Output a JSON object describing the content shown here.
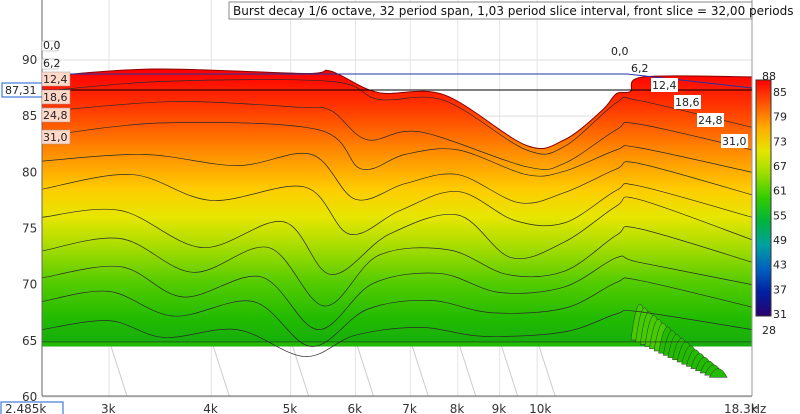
{
  "chart_data": {
    "type": "area",
    "title": "Burst decay 1/6 octave, 32 period span, 1,03 period slice interval,  front slice = 32,00 periods",
    "y_ticks": [
      "90",
      "85",
      "80",
      "75",
      "70",
      "65",
      "60"
    ],
    "y_range": [
      60,
      91
    ],
    "x_ticks": [
      "3k",
      "4k",
      "5k",
      "6k",
      "7k",
      "8k",
      "9k",
      "10k"
    ],
    "x_min_label": "2.485k",
    "x_max_label": "18.3k",
    "x_unit": "Hz",
    "x_range": [
      2485,
      18300
    ],
    "cursor_value": "87,31",
    "slice_labels_left": [
      "0,0",
      "6,2",
      "12,4",
      "18,6",
      "24,8",
      "31,0"
    ],
    "slice_labels_right": [
      "0,0",
      "6,2",
      "12,4",
      "18,6",
      "24,8",
      "31,0"
    ],
    "colorbar_ticks": [
      "88",
      "85",
      "79",
      "73",
      "67",
      "61",
      "55",
      "49",
      "43",
      "37",
      "31",
      "28"
    ],
    "colorbar_colors": [
      "#ff0000",
      "#ff5500",
      "#ffaa00",
      "#e6e600",
      "#99dd00",
      "#33cc00",
      "#00b33c",
      "#00a0a0",
      "#0060c0",
      "#0020a0",
      "#2a0070"
    ],
    "slices": [
      {
        "t": 0.0,
        "points": [
          [
            2485,
            88.5
          ],
          [
            3400,
            89.2
          ],
          [
            5200,
            88.8
          ],
          [
            5600,
            89.0
          ],
          [
            6400,
            87.1
          ],
          [
            7700,
            86.9
          ],
          [
            9700,
            82.4
          ],
          [
            10800,
            82.9
          ],
          [
            12000,
            85.5
          ],
          [
            12500,
            87.0
          ],
          [
            13000,
            87.2
          ],
          [
            13500,
            88.5
          ],
          [
            18300,
            88.5
          ]
        ]
      },
      {
        "t": 2.0,
        "points": [
          [
            2485,
            87.2
          ],
          [
            3500,
            88.1
          ],
          [
            5600,
            88.1
          ],
          [
            6400,
            86.5
          ],
          [
            7700,
            86.4
          ],
          [
            9700,
            82.0
          ],
          [
            10800,
            82.3
          ],
          [
            12500,
            86.2
          ],
          [
            13300,
            86.4
          ],
          [
            18300,
            84.0
          ]
        ]
      },
      {
        "t": 4.1,
        "points": [
          [
            2485,
            85.4
          ],
          [
            3600,
            86.3
          ],
          [
            5100,
            85.8
          ],
          [
            5600,
            85.5
          ],
          [
            6200,
            82.9
          ],
          [
            7200,
            83.6
          ],
          [
            9700,
            80.5
          ],
          [
            10800,
            80.8
          ],
          [
            12500,
            83.8
          ],
          [
            13300,
            84.3
          ],
          [
            18300,
            82.0
          ]
        ]
      },
      {
        "t": 6.2,
        "points": [
          [
            2485,
            83.2
          ],
          [
            3500,
            84.4
          ],
          [
            5400,
            83.8
          ],
          [
            6100,
            80.3
          ],
          [
            6900,
            81.6
          ],
          [
            8000,
            82.0
          ],
          [
            9700,
            79.8
          ],
          [
            10800,
            80.1
          ],
          [
            12500,
            82.0
          ],
          [
            13300,
            82.2
          ],
          [
            18300,
            80.0
          ]
        ]
      },
      {
        "t": 8.3,
        "points": [
          [
            2485,
            81.0
          ],
          [
            3300,
            81.6
          ],
          [
            4300,
            80.6
          ],
          [
            5300,
            81.6
          ],
          [
            6000,
            77.6
          ],
          [
            6900,
            79.0
          ],
          [
            8000,
            79.8
          ],
          [
            9500,
            77.3
          ],
          [
            10800,
            78.2
          ],
          [
            12500,
            80.3
          ],
          [
            13300,
            80.8
          ],
          [
            18300,
            78.0
          ]
        ]
      },
      {
        "t": 10.3,
        "points": [
          [
            2485,
            78.5
          ],
          [
            3200,
            79.8
          ],
          [
            4000,
            77.5
          ],
          [
            5200,
            78.7
          ],
          [
            5900,
            74.5
          ],
          [
            6800,
            76.6
          ],
          [
            8000,
            78.3
          ],
          [
            9400,
            75.7
          ],
          [
            10800,
            75.5
          ],
          [
            12500,
            78.4
          ],
          [
            13300,
            78.8
          ],
          [
            18300,
            76.0
          ]
        ]
      },
      {
        "t": 12.4,
        "points": [
          [
            2485,
            76.0
          ],
          [
            3100,
            76.6
          ],
          [
            3900,
            73.3
          ],
          [
            4900,
            75.6
          ],
          [
            5600,
            70.9
          ],
          [
            6600,
            74.5
          ],
          [
            8000,
            76.2
          ],
          [
            9300,
            72.4
          ],
          [
            10800,
            73.8
          ],
          [
            12500,
            77.0
          ],
          [
            13300,
            77.6
          ],
          [
            18300,
            74.0
          ]
        ]
      },
      {
        "t": 14.5,
        "points": [
          [
            2485,
            73.0
          ],
          [
            3100,
            74.1
          ],
          [
            3800,
            71.1
          ],
          [
            4700,
            73.3
          ],
          [
            5500,
            68.1
          ],
          [
            6400,
            72.6
          ],
          [
            7800,
            73.1
          ],
          [
            9200,
            70.9
          ],
          [
            10800,
            71.2
          ],
          [
            12500,
            74.4
          ],
          [
            13300,
            75.0
          ],
          [
            18300,
            72.0
          ]
        ]
      },
      {
        "t": 16.5,
        "points": [
          [
            2485,
            70.6
          ],
          [
            3100,
            71.6
          ],
          [
            3700,
            68.9
          ],
          [
            4600,
            70.7
          ],
          [
            5400,
            66.0
          ],
          [
            6300,
            70.1
          ],
          [
            7600,
            71.0
          ],
          [
            9000,
            69.3
          ],
          [
            10800,
            69.8
          ],
          [
            12500,
            72.4
          ],
          [
            13300,
            72.0
          ],
          [
            18300,
            70.0
          ]
        ]
      },
      {
        "t": 18.6,
        "points": [
          [
            2485,
            68.5
          ],
          [
            3000,
            69.4
          ],
          [
            3600,
            67.2
          ],
          [
            4500,
            68.5
          ],
          [
            5300,
            64.5
          ],
          [
            6200,
            67.8
          ],
          [
            7400,
            68.6
          ],
          [
            8800,
            67.5
          ],
          [
            10800,
            67.9
          ],
          [
            12500,
            70.2
          ],
          [
            13300,
            70.4
          ],
          [
            18300,
            68.0
          ]
        ]
      },
      {
        "t": 22.7,
        "points": [
          [
            2485,
            66.0
          ],
          [
            3000,
            66.8
          ],
          [
            3500,
            65.3
          ],
          [
            4300,
            66.0
          ],
          [
            5200,
            63.6
          ],
          [
            6000,
            65.5
          ],
          [
            7200,
            66.2
          ],
          [
            8600,
            65.4
          ],
          [
            10800,
            65.8
          ],
          [
            12500,
            67.4
          ],
          [
            13300,
            67.6
          ],
          [
            18300,
            66.0
          ]
        ]
      },
      {
        "t": 31.0,
        "points": [
          [
            2485,
            64.9
          ],
          [
            18300,
            64.9
          ]
        ]
      }
    ]
  }
}
